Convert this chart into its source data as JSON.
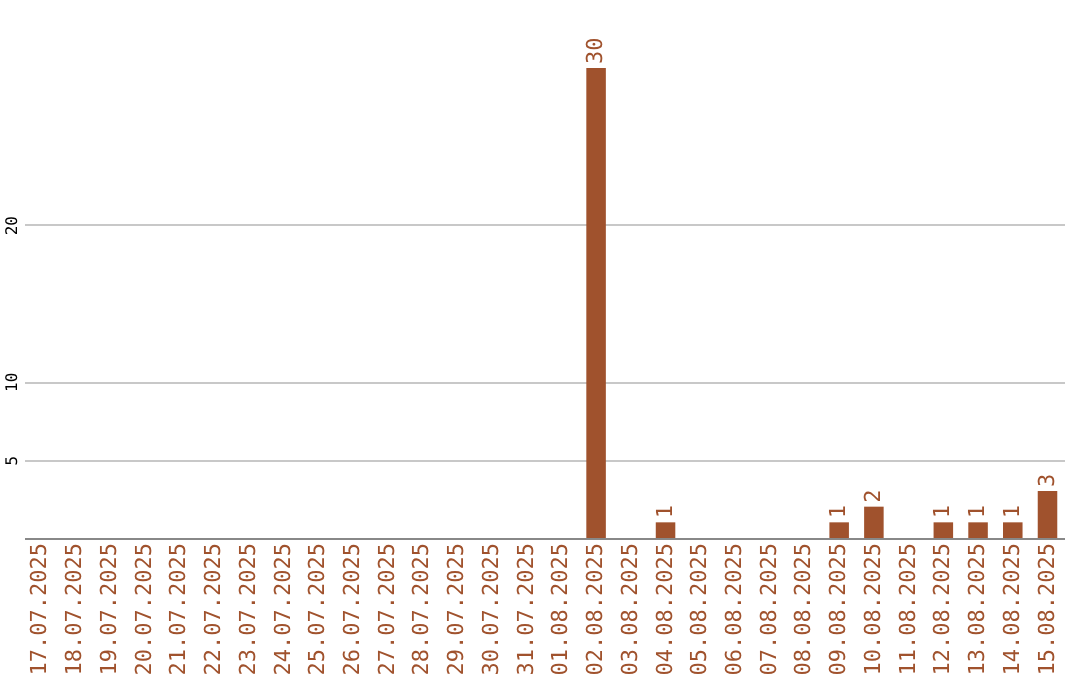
{
  "chart_data": {
    "type": "bar",
    "categories": [
      "17.07.2025",
      "18.07.2025",
      "19.07.2025",
      "20.07.2025",
      "21.07.2025",
      "22.07.2025",
      "23.07.2025",
      "24.07.2025",
      "25.07.2025",
      "26.07.2025",
      "27.07.2025",
      "28.07.2025",
      "29.07.2025",
      "30.07.2025",
      "31.07.2025",
      "01.08.2025",
      "02.08.2025",
      "03.08.2025",
      "04.08.2025",
      "05.08.2025",
      "06.08.2025",
      "07.08.2025",
      "08.08.2025",
      "09.08.2025",
      "10.08.2025",
      "11.08.2025",
      "12.08.2025",
      "13.08.2025",
      "14.08.2025",
      "15.08.2025"
    ],
    "values": [
      0,
      0,
      0,
      0,
      0,
      0,
      0,
      0,
      0,
      0,
      0,
      0,
      0,
      0,
      0,
      0,
      30,
      0,
      1,
      0,
      0,
      0,
      0,
      1,
      2,
      0,
      1,
      1,
      1,
      3
    ],
    "value_labels": [
      null,
      null,
      null,
      null,
      null,
      null,
      null,
      null,
      null,
      null,
      null,
      null,
      null,
      null,
      null,
      null,
      "30",
      null,
      "1",
      null,
      null,
      null,
      null,
      "1",
      "2",
      null,
      "1",
      "1",
      "1",
      "3"
    ],
    "color": "#a0522d",
    "ylim": [
      0,
      30
    ],
    "yticks": [
      5,
      10,
      20
    ],
    "grid": "y"
  }
}
